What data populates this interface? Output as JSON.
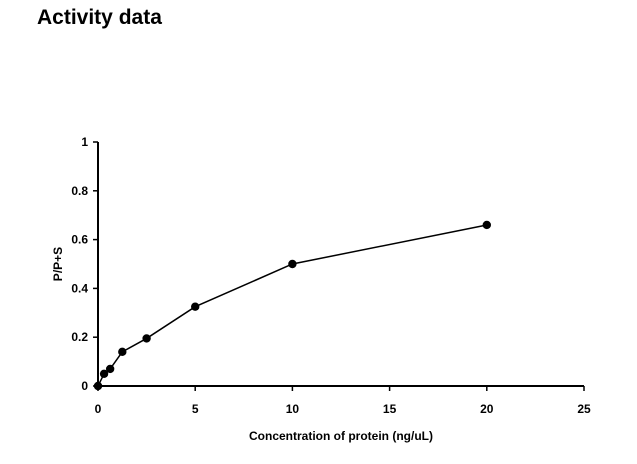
{
  "page": {
    "title": "Activity data"
  },
  "chart_data": {
    "type": "line",
    "title": "",
    "xlabel": "Concentration of protein (ng/uL)",
    "ylabel": "P/P+S",
    "xlim": [
      0,
      25
    ],
    "ylim": [
      0,
      1
    ],
    "x_ticks": [
      0,
      5,
      10,
      15,
      20,
      25
    ],
    "y_ticks": [
      0,
      0.2,
      0.4,
      0.6,
      0.8,
      1
    ],
    "x_tick_labels": [
      "0",
      "5",
      "10",
      "15",
      "20",
      "25"
    ],
    "y_tick_labels": [
      "0",
      "0.2",
      "0.4",
      "0.6",
      "0.8",
      "1"
    ],
    "grid": false,
    "legend": "none",
    "series": [
      {
        "x": [
          0,
          0.3125,
          0.625,
          1.25,
          2.5,
          5,
          10,
          20
        ],
        "y": [
          0,
          0.05,
          0.07,
          0.14,
          0.195,
          0.325,
          0.5,
          0.66
        ],
        "color": "#000000",
        "marker": "circle"
      }
    ]
  }
}
